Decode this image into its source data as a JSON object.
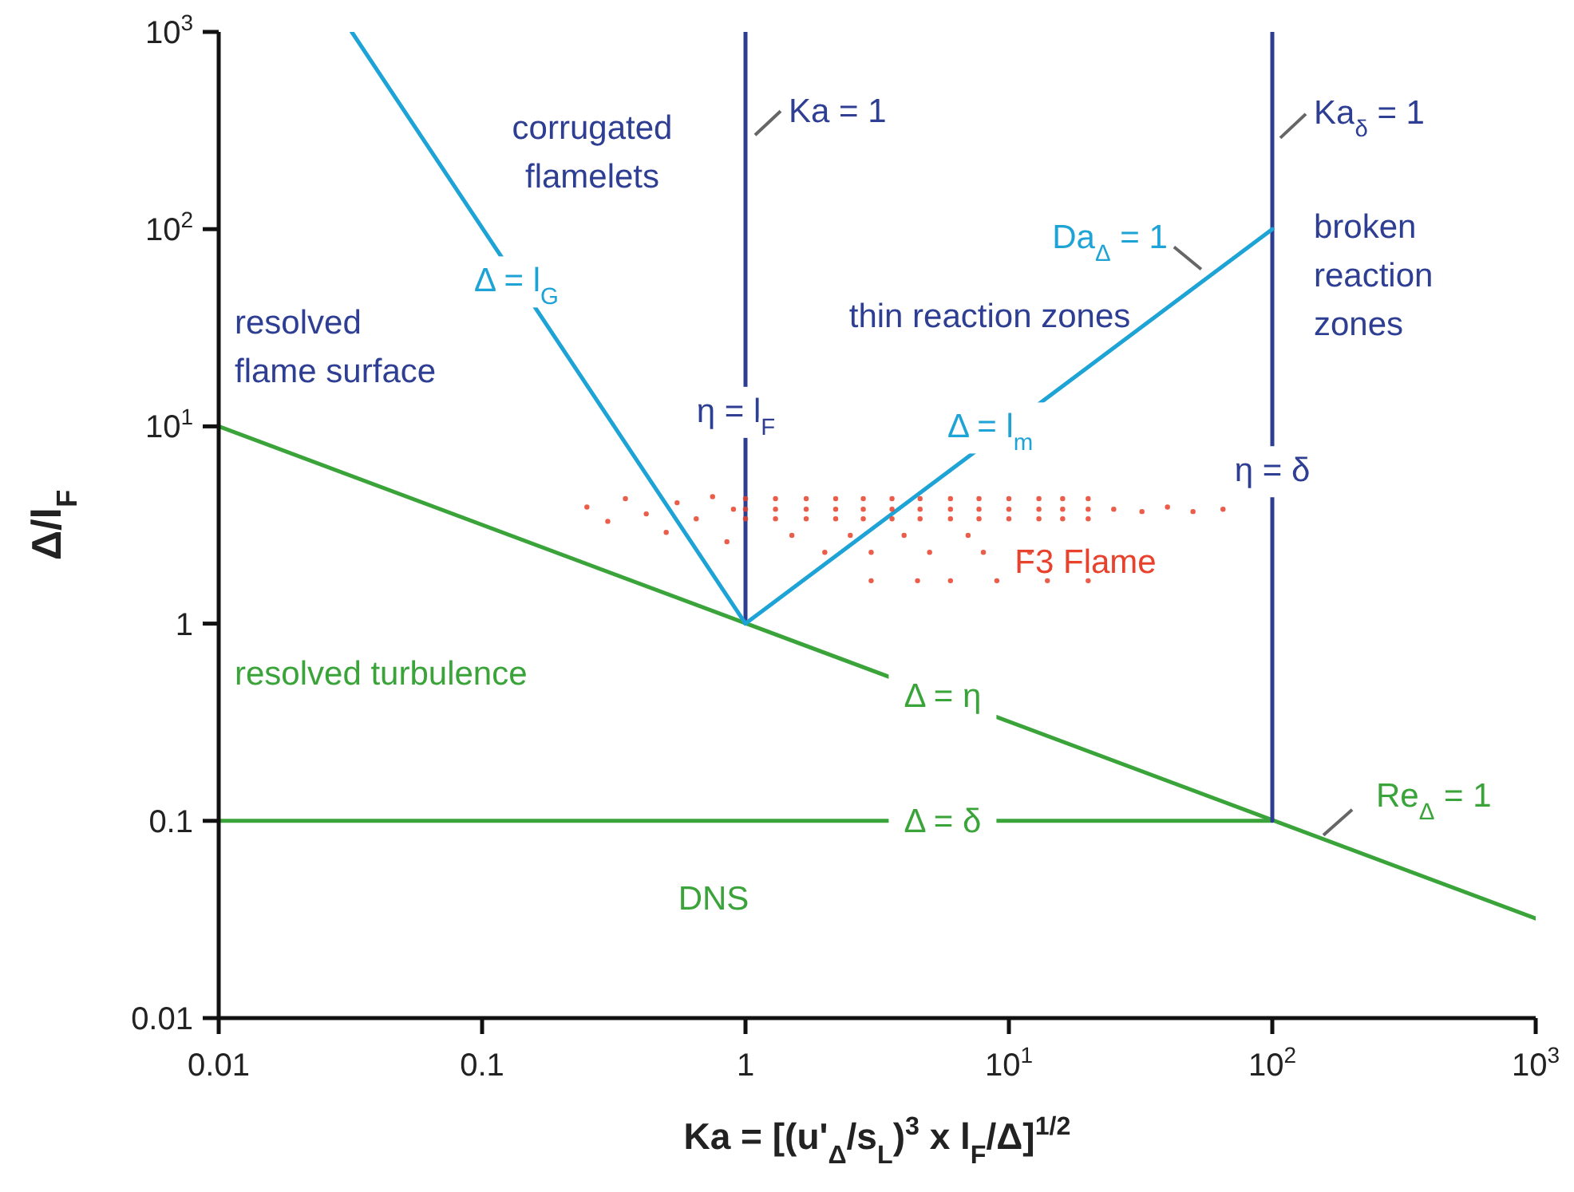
{
  "chart_data": {
    "type": "line",
    "xlabel": "Ka = [(u'$_{Δ}$/s$_{L}$)$^{3}$ x l$_{F}$/Δ]$^{1/2}$",
    "ylabel": "Δ/l$_{F}$",
    "log": "xy",
    "grid": false,
    "xlim": [
      0.01,
      1000
    ],
    "xticks": [
      0.01,
      0.1,
      1,
      {
        "value": 10,
        "label": "10$^{1}$"
      },
      {
        "value": 100,
        "label": "10$^{2}$"
      },
      {
        "value": 1000,
        "label": "10$^{3}$"
      }
    ],
    "ylim": [
      0.01,
      1000
    ],
    "yticks": [
      0.01,
      0.1,
      1,
      {
        "value": 10,
        "label": "10$^{1}$"
      },
      {
        "value": 100,
        "label": "10$^{2}$"
      },
      {
        "value": 1000,
        "label": "10$^{3}$"
      }
    ],
    "series": [
      {
        "color": "#3aa43a",
        "x": [
          0.01,
          1000
        ],
        "values": [
          10,
          0.032
        ]
      },
      {
        "color": "#3aa43a",
        "x": [
          0.01,
          100
        ],
        "values": [
          0.1,
          0.1
        ]
      },
      {
        "color": "#2e3f93",
        "x": [
          1,
          1
        ],
        "values": [
          1,
          1000
        ]
      },
      {
        "color": "#2e3f93",
        "x": [
          100,
          100
        ],
        "values": [
          0.1,
          1000
        ]
      },
      {
        "color": "#1ea3d6",
        "x": [
          0.032,
          1
        ],
        "values": [
          1000,
          1
        ]
      },
      {
        "color": "#1ea3d6",
        "x": [
          1,
          100
        ],
        "values": [
          1,
          100
        ]
      },
      {
        "type": "scatter",
        "name": "F3 Flame",
        "color": "#e8412c",
        "marker": "circle",
        "x": [
          0.25,
          0.3,
          0.35,
          0.42,
          0.5,
          0.55,
          0.65,
          0.75,
          0.85,
          0.9,
          1,
          1.3,
          1.7,
          2.2,
          2.8,
          3.6,
          4.6,
          6,
          7.7,
          10,
          13,
          16,
          20,
          1,
          1.3,
          1.7,
          2.2,
          2.8,
          3.6,
          4.6,
          6,
          7.7,
          10,
          13,
          16,
          20,
          1,
          1.3,
          1.7,
          2.2,
          2.8,
          3.6,
          4.6,
          6,
          7.7,
          10,
          13,
          16,
          20,
          1.5,
          2.5,
          4,
          7,
          2,
          3,
          5,
          8,
          12,
          3,
          4.5,
          6,
          9,
          14,
          20,
          25,
          32,
          40,
          50,
          65
        ],
        "values": [
          3.9,
          3.3,
          4.3,
          3.6,
          2.9,
          4.1,
          3.4,
          4.4,
          2.6,
          3.8,
          3.4,
          3.4,
          3.4,
          3.4,
          3.4,
          3.4,
          3.4,
          3.4,
          3.4,
          3.4,
          3.4,
          3.4,
          3.4,
          3.8,
          3.8,
          3.8,
          3.8,
          3.8,
          3.8,
          3.8,
          3.8,
          3.8,
          3.8,
          3.8,
          3.8,
          3.8,
          4.3,
          4.3,
          4.3,
          4.3,
          4.3,
          4.3,
          4.3,
          4.3,
          4.3,
          4.3,
          4.3,
          4.3,
          4.3,
          2.8,
          2.8,
          2.8,
          2.8,
          2.3,
          2.3,
          2.3,
          2.3,
          2.3,
          1.65,
          1.65,
          1.65,
          1.65,
          1.65,
          1.65,
          3.8,
          3.7,
          3.9,
          3.7,
          3.8
        ]
      }
    ],
    "annotations": [
      {
        "text": "Δ = l$_{G}$",
        "x": 0.135,
        "y": 55
      },
      {
        "text": "η = l$_{F}$",
        "x": 1,
        "y": 12
      },
      {
        "text": "Δ = l$_{m}$",
        "x": 9.5,
        "y": 10
      },
      {
        "text": "Δ = η",
        "x": 5.6,
        "y": 0.43
      },
      {
        "text": "Δ = δ",
        "x": 5.6,
        "y": 0.1
      },
      {
        "text": "η = δ",
        "x": 100,
        "y": 6
      },
      {
        "text": "Ka = 1",
        "x": 1,
        "y": 300
      },
      {
        "text": "Ka$_{δ}$ = 1",
        "x": 100,
        "y": 290
      },
      {
        "text": "Da$_{Δ}$ = 1",
        "x": 56,
        "y": 56
      },
      {
        "text": "Re$_{Δ}$ = 1",
        "x": 170,
        "y": 0.077
      },
      "corrugated flamelets",
      "resolved flame surface",
      "thin reaction zones",
      "broken reaction zones",
      "resolved turbulence",
      "DNS"
    ]
  }
}
